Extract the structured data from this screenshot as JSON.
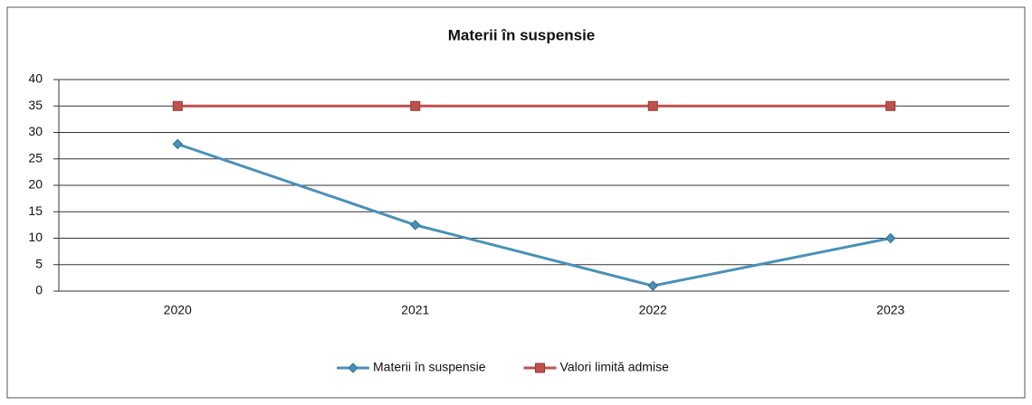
{
  "chart_data": {
    "type": "line",
    "title": "Materii în suspensie",
    "categories": [
      "2020",
      "2021",
      "2022",
      "2023"
    ],
    "series": [
      {
        "name": "Materii în suspensie",
        "color": "#4a90b8",
        "marker": "diamond",
        "values": [
          27.8,
          12.5,
          1,
          10
        ]
      },
      {
        "name": "Valori limită admise",
        "color": "#c0504d",
        "marker": "square",
        "values": [
          35,
          35,
          35,
          35
        ]
      }
    ],
    "ylim": [
      0,
      40
    ],
    "yticks": [
      0,
      5,
      10,
      15,
      20,
      25,
      30,
      35,
      40
    ],
    "grid": true,
    "legend": "bottom"
  }
}
